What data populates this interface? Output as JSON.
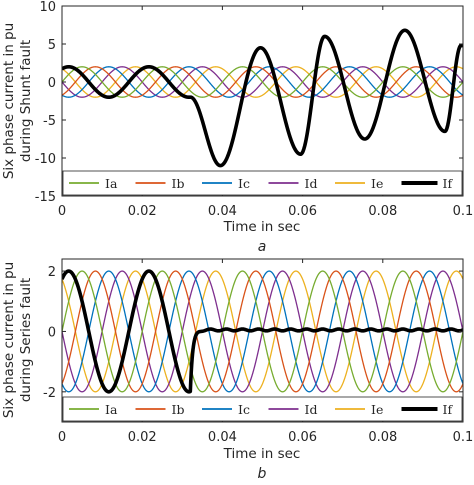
{
  "colors": {
    "Ia": "#77ac30",
    "Ib": "#d95319",
    "Ic": "#0072bd",
    "Id": "#7e2f8e",
    "Ie": "#edb120",
    "If": "#000000"
  },
  "chart_data": [
    {
      "type": "line",
      "panel_label": "a",
      "xlabel": "Time in sec",
      "ylabel_line1": "Six phase current in pu",
      "ylabel_line2": "during Shunt fault",
      "xlim": [
        0,
        0.1
      ],
      "ylim": [
        -15,
        10
      ],
      "xticks": [
        0,
        0.02,
        0.04,
        0.06,
        0.08,
        0.1
      ],
      "xtick_labels": [
        "0",
        "0.02",
        "0.04",
        "0.06",
        "0.08",
        "0.1"
      ],
      "yticks": [
        10,
        5,
        0,
        -5,
        -10,
        -15
      ],
      "ytick_labels": [
        "10",
        "5",
        "0",
        "-5",
        "-10",
        "-15"
      ],
      "frequency_hz": 50,
      "healthy_amplitude": 2,
      "fault_time": 0.032,
      "series": [
        {
          "name": "Ia",
          "amplitude": 2,
          "phase_deg": 0
        },
        {
          "name": "Ib",
          "amplitude": 2,
          "phase_deg": -60
        },
        {
          "name": "Ic",
          "amplitude": 2,
          "phase_deg": -120
        },
        {
          "name": "Id",
          "amplitude": 2,
          "phase_deg": -180
        },
        {
          "name": "Ie",
          "amplitude": 2,
          "phase_deg": -240
        },
        {
          "name": "If",
          "amplitude": 2,
          "phase_deg": -300,
          "fault_peaks": [
            [
              0.0395,
              -11
            ],
            [
              0.0495,
              4.5
            ],
            [
              0.0595,
              -9.5
            ],
            [
              0.0655,
              6
            ],
            [
              0.0755,
              -7.5
            ],
            [
              0.0855,
              6.8
            ],
            [
              0.0955,
              -6.5
            ],
            [
              0.0995,
              4.8
            ]
          ]
        }
      ],
      "legend": {
        "placement": "bottom",
        "entries": [
          "Ia",
          "Ib",
          "Ic",
          "Id",
          "Ie",
          "If"
        ]
      }
    },
    {
      "type": "line",
      "panel_label": "b",
      "xlabel": "Time in sec",
      "ylabel_line1": "Six phase current in pu",
      "ylabel_line2": "during Series fault",
      "xlim": [
        0,
        0.1
      ],
      "ylim": [
        -3,
        2.4
      ],
      "xticks": [
        0,
        0.02,
        0.04,
        0.06,
        0.08,
        0.1
      ],
      "xtick_labels": [
        "0",
        "0.02",
        "0.04",
        "0.06",
        "0.08",
        "0.1"
      ],
      "yticks": [
        2,
        0,
        -2
      ],
      "ytick_labels": [
        "2",
        "0",
        "-2"
      ],
      "frequency_hz": 50,
      "healthy_amplitude": 2,
      "fault_time": 0.032,
      "series": [
        {
          "name": "Ia",
          "amplitude": 2,
          "phase_deg": 0
        },
        {
          "name": "Ib",
          "amplitude": 2,
          "phase_deg": -60
        },
        {
          "name": "Ic",
          "amplitude": 2,
          "phase_deg": -120
        },
        {
          "name": "Id",
          "amplitude": 2,
          "phase_deg": -180
        },
        {
          "name": "Ie",
          "amplitude": 2,
          "phase_deg": -240
        },
        {
          "name": "If",
          "amplitude": 2,
          "phase_deg": -300,
          "post_fault_value": 0.05
        }
      ],
      "legend": {
        "placement": "bottom",
        "entries": [
          "Ia",
          "Ib",
          "Ic",
          "Id",
          "Ie",
          "If"
        ]
      }
    }
  ]
}
